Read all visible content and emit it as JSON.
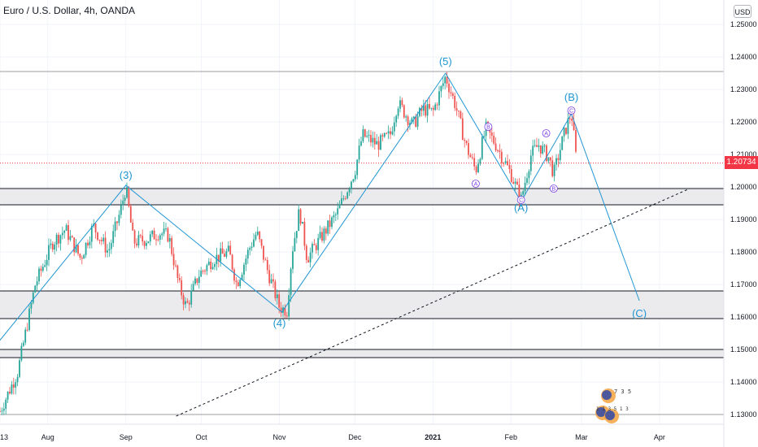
{
  "header": {
    "title": "Euro / U.S. Dollar, 4h, OANDA",
    "currency_button": "USD",
    "last_price": "1.20734"
  },
  "colors": {
    "up": "#26a69a",
    "down": "#ef5350",
    "wave": "#2196d3",
    "subwave": "#7b3fe4",
    "zone": "#ebebed",
    "price_tag": "#f23645",
    "trend": "#131722"
  },
  "chart_data": {
    "type": "candlestick",
    "title": "Euro / U.S. Dollar, 4h, OANDA",
    "ylim": [
      1.125,
      1.255
    ],
    "yticks": [
      1.25,
      1.24,
      1.23,
      1.22,
      1.21,
      1.2,
      1.19,
      1.18,
      1.17,
      1.16,
      1.15,
      1.14,
      1.13
    ],
    "ytick_labels": [
      "1.25000",
      "1.24000",
      "1.23000",
      "1.22000",
      "1.21000",
      "1.20000",
      "1.19000",
      "1.18000",
      "1.17000",
      "1.16000",
      "1.15000",
      "1.14000",
      "1.13000"
    ],
    "xlim": [
      "2020-07-13",
      "2021-04-13"
    ],
    "xticks": [
      {
        "date": "2020-07-13",
        "label": "13"
      },
      {
        "date": "2020-08-01",
        "label": "Aug"
      },
      {
        "date": "2020-09-01",
        "label": "Sep"
      },
      {
        "date": "2020-10-01",
        "label": "Oct"
      },
      {
        "date": "2020-11-01",
        "label": "Nov"
      },
      {
        "date": "2020-12-01",
        "label": "Dec"
      },
      {
        "date": "2021-01-01",
        "label": "2021"
      },
      {
        "date": "2021-02-01",
        "label": "Feb"
      },
      {
        "date": "2021-03-01",
        "label": "Mar"
      },
      {
        "date": "2021-04-01",
        "label": "Apr"
      }
    ],
    "price_path": [
      [
        "2020-07-13",
        1.131
      ],
      [
        "2020-07-20",
        1.143
      ],
      [
        "2020-07-27",
        1.17
      ],
      [
        "2020-08-03",
        1.183
      ],
      [
        "2020-08-08",
        1.187
      ],
      [
        "2020-08-14",
        1.178
      ],
      [
        "2020-08-19",
        1.188
      ],
      [
        "2020-08-25",
        1.18
      ],
      [
        "2020-08-30",
        1.193
      ],
      [
        "2020-09-01",
        1.2
      ],
      [
        "2020-09-04",
        1.183
      ],
      [
        "2020-09-10",
        1.184
      ],
      [
        "2020-09-14",
        1.186
      ],
      [
        "2020-09-18",
        1.185
      ],
      [
        "2020-09-22",
        1.17
      ],
      [
        "2020-09-25",
        1.163
      ],
      [
        "2020-09-30",
        1.173
      ],
      [
        "2020-10-06",
        1.178
      ],
      [
        "2020-10-12",
        1.18
      ],
      [
        "2020-10-15",
        1.17
      ],
      [
        "2020-10-20",
        1.181
      ],
      [
        "2020-10-23",
        1.186
      ],
      [
        "2020-10-27",
        1.175
      ],
      [
        "2020-11-01",
        1.163
      ],
      [
        "2020-11-04",
        1.162
      ],
      [
        "2020-11-06",
        1.18
      ],
      [
        "2020-11-09",
        1.193
      ],
      [
        "2020-11-12",
        1.178
      ],
      [
        "2020-11-18",
        1.185
      ],
      [
        "2020-11-24",
        1.192
      ],
      [
        "2020-12-01",
        1.205
      ],
      [
        "2020-12-04",
        1.216
      ],
      [
        "2020-12-10",
        1.213
      ],
      [
        "2020-12-15",
        1.216
      ],
      [
        "2020-12-18",
        1.226
      ],
      [
        "2020-12-24",
        1.219
      ],
      [
        "2020-12-28",
        1.224
      ],
      [
        "2021-01-01",
        1.223
      ],
      [
        "2021-01-06",
        1.234
      ],
      [
        "2021-01-10",
        1.225
      ],
      [
        "2021-01-14",
        1.213
      ],
      [
        "2021-01-18",
        1.205
      ],
      [
        "2021-01-22",
        1.218
      ],
      [
        "2021-01-26",
        1.213
      ],
      [
        "2021-02-01",
        1.204
      ],
      [
        "2021-02-05",
        1.196
      ],
      [
        "2021-02-09",
        1.21
      ],
      [
        "2021-02-12",
        1.213
      ],
      [
        "2021-02-16",
        1.209
      ],
      [
        "2021-02-18",
        1.204
      ],
      [
        "2021-02-22",
        1.216
      ],
      [
        "2021-02-25",
        1.223
      ],
      [
        "2021-02-27",
        1.208
      ]
    ],
    "waves": [
      {
        "label": "(3)",
        "date": "2020-09-01",
        "value": 1.2025
      },
      {
        "label": "(4)",
        "date": "2020-11-01",
        "value": 1.157
      },
      {
        "label": "(5)",
        "date": "2021-01-06",
        "value": 1.2375
      },
      {
        "label": "(A)",
        "date": "2021-02-05",
        "value": 1.1925
      },
      {
        "label": "(B)",
        "date": "2021-02-25",
        "value": 1.2265
      },
      {
        "label": "(C)",
        "date": "2021-03-24",
        "value": 1.16
      }
    ],
    "subwaves": [
      {
        "label": "A",
        "date": "2021-01-18",
        "value": 1.201
      },
      {
        "label": "B",
        "date": "2021-01-23",
        "value": 1.2185
      },
      {
        "label": "C",
        "date": "2021-02-05",
        "value": 1.196
      },
      {
        "label": "A",
        "date": "2021-02-15",
        "value": 1.2165
      },
      {
        "label": "B",
        "date": "2021-02-18",
        "value": 1.1995
      },
      {
        "label": "C",
        "date": "2021-02-25",
        "value": 1.2235
      }
    ],
    "wave_lines": [
      [
        [
          "2020-07-10",
          1.15
        ],
        [
          "2020-09-01",
          1.2005
        ],
        [
          "2020-11-02",
          1.1615
        ],
        [
          "2021-01-06",
          1.235
        ],
        [
          "2021-02-05",
          1.1955
        ],
        [
          "2021-02-25",
          1.2225
        ],
        [
          "2021-03-24",
          1.165
        ]
      ]
    ],
    "trendline": [
      [
        "2020-09-21",
        1.1295
      ],
      [
        "2021-04-13",
        1.1995
      ]
    ],
    "zones": [
      {
        "low": 1.1945,
        "high": 1.1995
      },
      {
        "low": 1.1595,
        "high": 1.168
      },
      {
        "low": 1.1475,
        "high": 1.15
      }
    ],
    "hlines": [
      1.2355,
      1.13
    ],
    "last_price": 1.20734
  },
  "logo": {
    "marks": [
      "7 3 5",
      "1 1 3 5 1 3"
    ]
  }
}
